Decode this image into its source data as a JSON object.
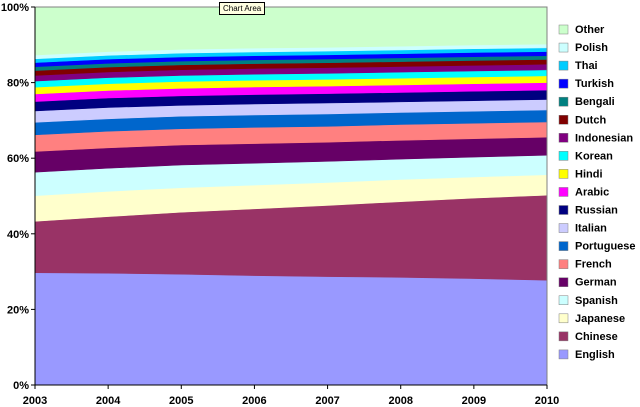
{
  "tooltip": "Chart Area",
  "chart_data": {
    "type": "area",
    "stacked": true,
    "percent": true,
    "x": [
      "2003",
      "2004",
      "2005",
      "2006",
      "2007",
      "2008",
      "2009",
      "2010"
    ],
    "y_ticks": [
      "0%",
      "20%",
      "40%",
      "60%",
      "80%",
      "100%"
    ],
    "ylim": [
      0,
      100
    ],
    "grid": false,
    "legend_position": "right",
    "series": [
      {
        "name": "English",
        "color": "#9999ff",
        "values": [
          29.7,
          29.6,
          29.3,
          29.0,
          28.8,
          28.6,
          28.3,
          28.0
        ]
      },
      {
        "name": "Chinese",
        "color": "#993366",
        "values": [
          13.6,
          15.0,
          16.4,
          17.7,
          18.9,
          20.1,
          21.4,
          22.7
        ]
      },
      {
        "name": "Japanese",
        "color": "#ffffcc",
        "values": [
          6.8,
          6.7,
          6.5,
          6.3,
          6.1,
          5.9,
          5.6,
          5.5
        ]
      },
      {
        "name": "Spanish",
        "color": "#ccffff",
        "values": [
          6.2,
          6.1,
          6.0,
          5.8,
          5.6,
          5.4,
          5.3,
          5.2
        ]
      },
      {
        "name": "German",
        "color": "#660066",
        "values": [
          5.5,
          5.4,
          5.3,
          5.2,
          5.1,
          5.0,
          4.9,
          4.8
        ]
      },
      {
        "name": "French",
        "color": "#ff8080",
        "values": [
          4.4,
          4.4,
          4.3,
          4.3,
          4.2,
          4.2,
          4.1,
          4.1
        ]
      },
      {
        "name": "Portuguese",
        "color": "#0066cc",
        "values": [
          3.3,
          3.3,
          3.3,
          3.3,
          3.3,
          3.2,
          3.2,
          3.2
        ]
      },
      {
        "name": "Italian",
        "color": "#ccccff",
        "values": [
          3.0,
          3.0,
          2.9,
          2.9,
          2.9,
          2.8,
          2.8,
          2.8
        ]
      },
      {
        "name": "Russian",
        "color": "#000080",
        "values": [
          2.5,
          2.5,
          2.5,
          2.5,
          2.5,
          2.5,
          2.5,
          2.5
        ]
      },
      {
        "name": "Arabic",
        "color": "#ff00ff",
        "values": [
          2.0,
          2.0,
          2.0,
          2.0,
          2.0,
          2.0,
          2.0,
          2.0
        ]
      },
      {
        "name": "Hindi",
        "color": "#ffff00",
        "values": [
          1.8,
          1.8,
          1.8,
          1.8,
          1.8,
          1.8,
          1.8,
          1.8
        ]
      },
      {
        "name": "Korean",
        "color": "#00ffff",
        "values": [
          1.6,
          1.6,
          1.6,
          1.6,
          1.6,
          1.6,
          1.6,
          1.6
        ]
      },
      {
        "name": "Indonesian",
        "color": "#800080",
        "values": [
          1.5,
          1.5,
          1.5,
          1.5,
          1.5,
          1.5,
          1.5,
          1.5
        ]
      },
      {
        "name": "Dutch",
        "color": "#800000",
        "values": [
          1.3,
          1.3,
          1.3,
          1.3,
          1.3,
          1.3,
          1.3,
          1.3
        ]
      },
      {
        "name": "Bengali",
        "color": "#008080",
        "values": [
          1.0,
          1.0,
          1.0,
          1.0,
          1.0,
          1.0,
          1.0,
          1.0
        ]
      },
      {
        "name": "Turkish",
        "color": "#0000ff",
        "values": [
          1.1,
          1.1,
          1.1,
          1.1,
          1.1,
          1.1,
          1.1,
          1.1
        ]
      },
      {
        "name": "Thai",
        "color": "#00ccff",
        "values": [
          1.0,
          1.0,
          1.0,
          1.0,
          1.0,
          1.0,
          1.0,
          1.0
        ]
      },
      {
        "name": "Polish",
        "color": "#ccffff",
        "values": [
          1.0,
          1.0,
          1.0,
          1.0,
          1.0,
          1.0,
          1.0,
          1.0
        ]
      },
      {
        "name": "Other",
        "color": "#ccffcc",
        "values": [
          12.7,
          11.8,
          11.2,
          10.9,
          10.7,
          10.4,
          10.1,
          9.9
        ]
      }
    ]
  }
}
